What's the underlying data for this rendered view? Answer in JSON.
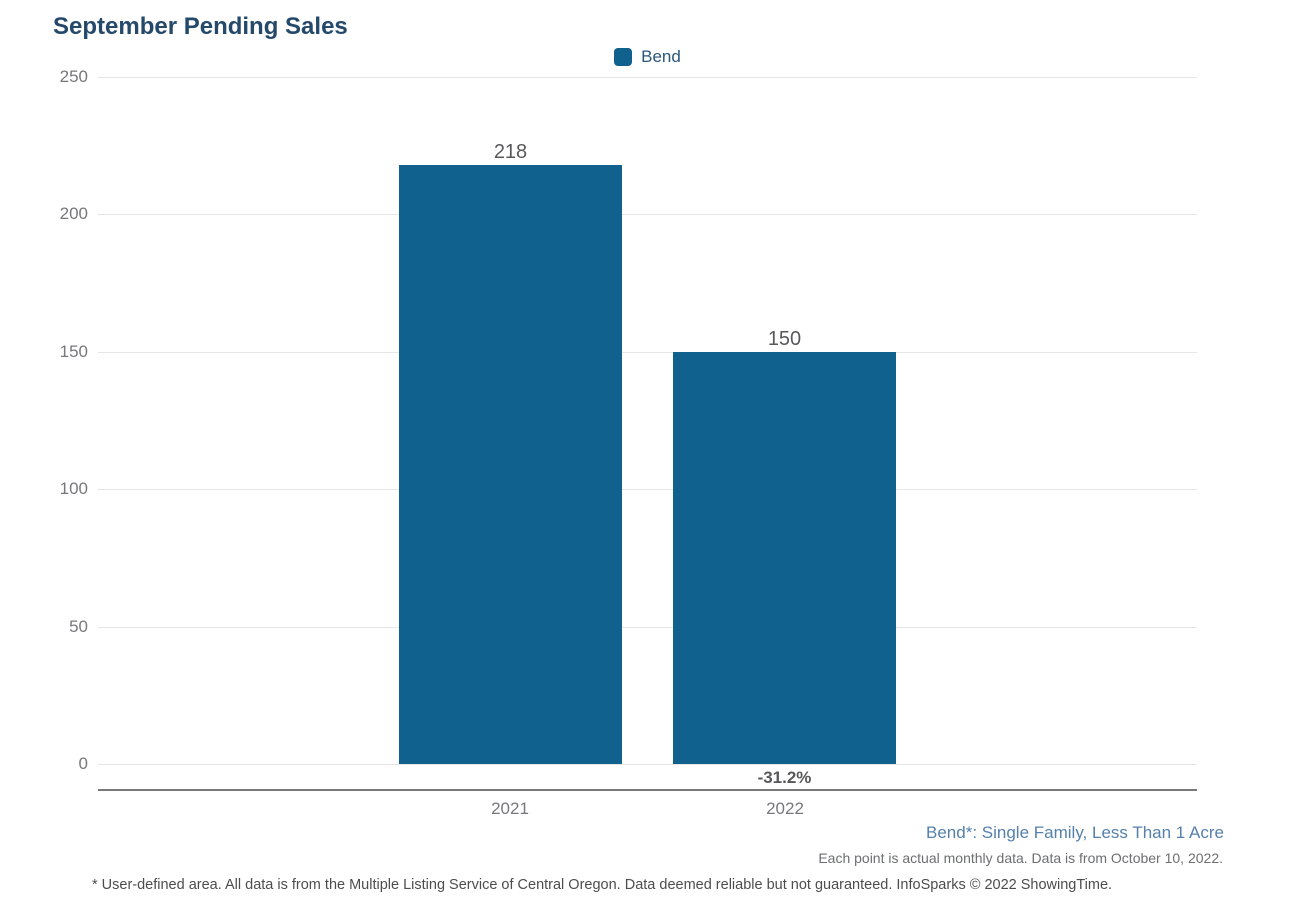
{
  "title": "September Pending Sales",
  "legend": {
    "label": "Bend"
  },
  "chart_data": {
    "type": "bar",
    "title": "September Pending Sales",
    "categories": [
      "2021",
      "2022"
    ],
    "series": [
      {
        "name": "Bend",
        "values": [
          218,
          150
        ],
        "color": "#11618F"
      }
    ],
    "bar_value_labels": [
      "218",
      "150"
    ],
    "change_labels": [
      "",
      "-31.2%"
    ],
    "xlabel": "",
    "ylabel": "",
    "ylim": [
      0,
      250
    ],
    "yticks": [
      0,
      50,
      100,
      150,
      200,
      250
    ],
    "grid": true,
    "legend_position": "top-center"
  },
  "notes": {
    "series_note": "Bend*: Single Family, Less Than 1 Acre",
    "data_note": "Each point is actual monthly data. Data is from October 10, 2022.",
    "footer": "* User-defined area. All data is from the Multiple Listing Service of Central Oregon. Data deemed reliable but not guaranteed. InfoSparks © 2022 ShowingTime."
  },
  "colors": {
    "bar": "#11618F",
    "title_text": "#25496B",
    "legend_text": "#29567B",
    "tick_text": "#77787B",
    "value_text": "#59595B",
    "gridline": "#E6E6E6",
    "axis_line": "#77787B",
    "series_note_text": "#5580AC",
    "data_note_text": "#6D6E70",
    "footer_text": "#4D4D4D"
  }
}
